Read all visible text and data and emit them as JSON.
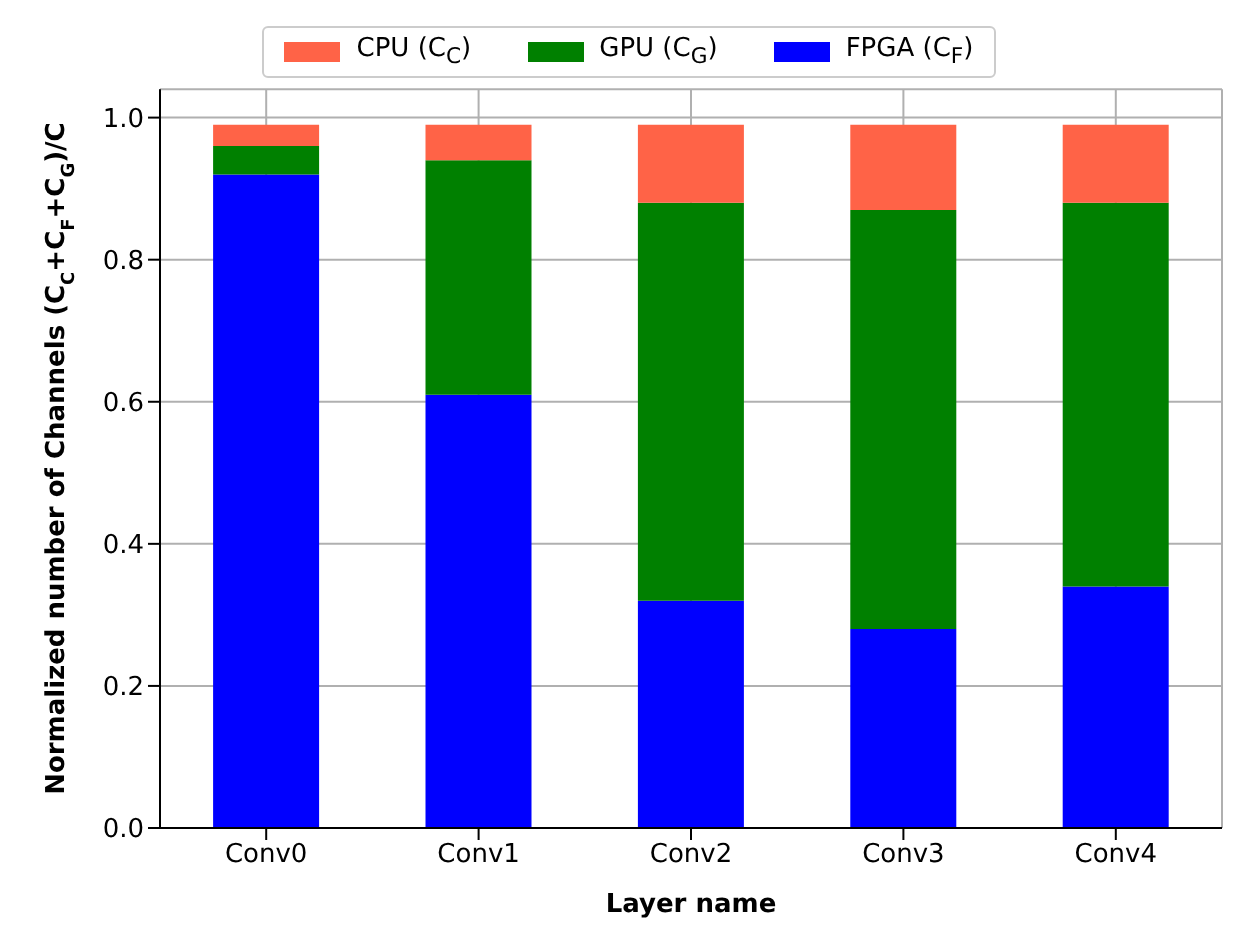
{
  "chart_data": {
    "type": "bar",
    "stacked": true,
    "xlabel": "Layer name",
    "ylabel": "Normalized number of Channels (C$_{C}$+C$_{F}$+C$_{G}$)/C",
    "categories": [
      "Conv0",
      "Conv1",
      "Conv2",
      "Conv3",
      "Conv4"
    ],
    "series": [
      {
        "name": "FPGA (C$_{F}$)",
        "color": "#0000ff",
        "values": [
          0.92,
          0.61,
          0.32,
          0.28,
          0.34
        ]
      },
      {
        "name": "GPU (C$_{G}$)",
        "color": "#008000",
        "values": [
          0.04,
          0.33,
          0.56,
          0.59,
          0.54
        ]
      },
      {
        "name": "CPU (C$_{C}$)",
        "color": "#ff6347",
        "values": [
          0.03,
          0.05,
          0.11,
          0.12,
          0.11
        ]
      }
    ],
    "ylim": [
      0,
      1.04
    ],
    "yticks": [
      {
        "value": 0,
        "label": "0.0"
      },
      0.2,
      0.4,
      0.6,
      0.8,
      {
        "value": 1,
        "label": "1.0"
      }
    ],
    "grid": true,
    "legend": "top"
  }
}
